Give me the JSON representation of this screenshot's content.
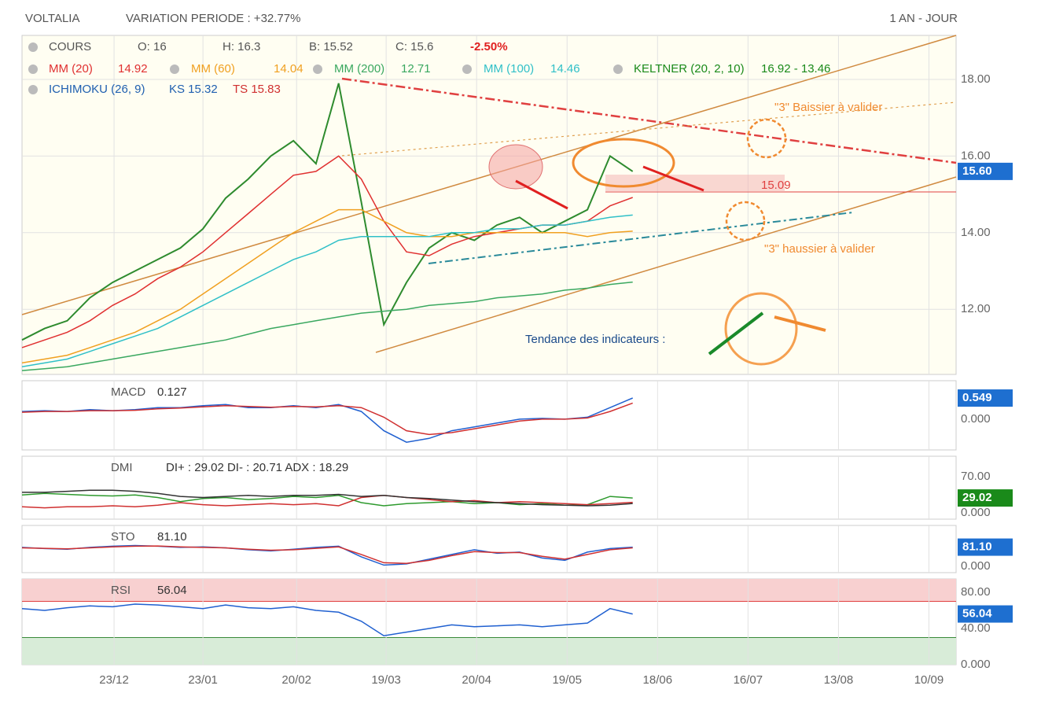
{
  "header": {
    "title": "VOLTALIA",
    "variation": "VARIATION PERIODE : +32.77%",
    "period": "1 AN - JOUR"
  },
  "chart_data": [
    {
      "type": "line",
      "name": "COURS",
      "ohlc": {
        "open": "O: 16",
        "high": "H: 16.3",
        "low": "B: 15.52",
        "close": "C: 15.6",
        "change": "-2.50%"
      },
      "x": [
        0,
        1,
        2,
        3,
        4,
        5,
        6,
        7,
        8,
        9,
        10,
        11,
        12,
        13,
        14,
        15,
        16,
        17,
        18,
        19,
        20,
        21,
        22,
        23,
        24,
        25,
        26,
        27
      ],
      "xlim": [
        0,
        41.3
      ],
      "xticks": [
        {
          "value": 4.07,
          "label": "23/12"
        },
        {
          "value": 8.0,
          "label": "23/01"
        },
        {
          "value": 12.14,
          "label": "20/02"
        },
        {
          "value": 16.1,
          "label": "19/03"
        },
        {
          "value": 20.1,
          "label": "20/04"
        },
        {
          "value": 24.1,
          "label": "19/05"
        },
        {
          "value": 28.1,
          "label": "18/06"
        },
        {
          "value": 32.1,
          "label": "16/07"
        },
        {
          "value": 36.1,
          "label": "13/08"
        },
        {
          "value": 40.1,
          "label": "10/09"
        }
      ],
      "ylim": [
        10.3,
        19.15
      ],
      "yticks": [
        {
          "value": 12,
          "label": "12.00"
        },
        {
          "value": 14,
          "label": "14.00"
        },
        {
          "value": 16,
          "label": "16.00"
        },
        {
          "value": 18,
          "label": "18.00"
        }
      ],
      "grid": true,
      "value_tag": {
        "value": 15.6,
        "label": "15.60",
        "color": "#1e6fd0"
      },
      "series": [
        {
          "name": "COURS",
          "color": "#2e8b2e",
          "values": [
            11.2,
            11.5,
            11.7,
            12.3,
            12.7,
            13.0,
            13.3,
            13.6,
            14.1,
            14.9,
            15.4,
            16.0,
            16.4,
            15.8,
            17.9,
            14.8,
            11.6,
            12.7,
            13.6,
            14.0,
            13.8,
            14.2,
            14.4,
            14.0,
            14.3,
            14.6,
            16.0,
            15.6
          ]
        },
        {
          "name": "MM (20)",
          "value_label": "14.92",
          "color": "#e03030",
          "values": [
            11.0,
            11.2,
            11.4,
            11.7,
            12.1,
            12.4,
            12.8,
            13.1,
            13.5,
            14.0,
            14.5,
            15.0,
            15.5,
            15.6,
            16.0,
            15.4,
            14.3,
            13.5,
            13.4,
            13.7,
            13.9,
            14.0,
            14.1,
            14.2,
            14.2,
            14.3,
            14.7,
            14.92
          ]
        },
        {
          "name": "MM (60)",
          "value_label": "14.04",
          "color": "#f0a020",
          "values": [
            10.6,
            10.7,
            10.8,
            11.0,
            11.2,
            11.4,
            11.7,
            12.0,
            12.4,
            12.8,
            13.2,
            13.6,
            14.0,
            14.3,
            14.6,
            14.6,
            14.3,
            14.0,
            13.9,
            13.9,
            14.0,
            14.0,
            14.0,
            14.0,
            14.0,
            13.9,
            14.0,
            14.04
          ]
        },
        {
          "name": "MM (200)",
          "value_label": "12.71",
          "color": "#3aa860",
          "values": [
            10.4,
            10.45,
            10.5,
            10.6,
            10.7,
            10.8,
            10.9,
            11.0,
            11.1,
            11.2,
            11.35,
            11.5,
            11.6,
            11.7,
            11.8,
            11.9,
            11.95,
            12.0,
            12.1,
            12.15,
            12.2,
            12.3,
            12.35,
            12.4,
            12.5,
            12.55,
            12.65,
            12.71
          ]
        },
        {
          "name": "MM (100)",
          "value_label": "14.46",
          "color": "#30c0c8",
          "values": [
            10.5,
            10.6,
            10.7,
            10.9,
            11.1,
            11.3,
            11.5,
            11.8,
            12.1,
            12.4,
            12.7,
            13.0,
            13.3,
            13.5,
            13.8,
            13.9,
            13.9,
            13.9,
            13.9,
            14.0,
            14.0,
            14.1,
            14.1,
            14.2,
            14.2,
            14.3,
            14.4,
            14.46
          ]
        }
      ],
      "indicators": [
        {
          "name": "KELTNER (20, 2, 10)",
          "label": "16.92 - 13.46",
          "color": "#1a8a1a"
        }
      ],
      "ichimoku": {
        "name": "ICHIMOKU (26, 9)",
        "ks": "KS 15.32",
        "ts": "TS 15.83"
      },
      "annotations": [
        "\"3\" Baissier à valider",
        "\"3\" haussier à valider",
        "Tendance des indicateurs :",
        "15.09"
      ]
    },
    {
      "type": "line",
      "name": "MACD",
      "label": "0.127",
      "ylim": [
        -0.8,
        1.0
      ],
      "yticks": [
        {
          "value": 0,
          "label": "0.000"
        }
      ],
      "value_tag": {
        "value": 0.549,
        "label": "0.549",
        "color": "#1e6fd0"
      },
      "series": [
        {
          "color": "#2060d0",
          "values": [
            0.2,
            0.22,
            0.2,
            0.25,
            0.22,
            0.25,
            0.3,
            0.3,
            0.35,
            0.38,
            0.3,
            0.3,
            0.35,
            0.3,
            0.38,
            0.2,
            -0.3,
            -0.6,
            -0.5,
            -0.3,
            -0.2,
            -0.1,
            0.0,
            0.02,
            0.0,
            0.05,
            0.3,
            0.549
          ]
        },
        {
          "color": "#d03030",
          "values": [
            0.18,
            0.2,
            0.2,
            0.22,
            0.22,
            0.23,
            0.27,
            0.29,
            0.32,
            0.35,
            0.33,
            0.31,
            0.33,
            0.32,
            0.35,
            0.3,
            0.05,
            -0.3,
            -0.4,
            -0.35,
            -0.25,
            -0.15,
            -0.05,
            0.0,
            0.0,
            0.03,
            0.2,
            0.42
          ]
        }
      ]
    },
    {
      "type": "line",
      "name": "DMI",
      "label": "DI+ : 29.02 DI- : 20.71 ADX : 18.29",
      "ylim": [
        -12,
        110
      ],
      "yticks": [
        {
          "value": 0,
          "label": "0.000"
        },
        {
          "value": 70,
          "label": "70.00"
        }
      ],
      "value_tag": {
        "value": 29.02,
        "label": "29.02",
        "color": "#1a8a1a"
      },
      "series": [
        {
          "color": "#2e9a2e",
          "values": [
            35,
            38,
            36,
            34,
            33,
            35,
            30,
            22,
            28,
            30,
            26,
            28,
            32,
            30,
            34,
            20,
            14,
            18,
            20,
            22,
            18,
            20,
            16,
            18,
            15,
            16,
            32,
            29.02
          ]
        },
        {
          "color": "#d03030",
          "values": [
            12,
            10,
            12,
            12,
            14,
            12,
            15,
            20,
            16,
            14,
            16,
            18,
            16,
            18,
            14,
            30,
            34,
            30,
            26,
            22,
            24,
            20,
            22,
            20,
            18,
            16,
            18,
            20.71
          ]
        },
        {
          "color": "#333333",
          "values": [
            40,
            40,
            42,
            44,
            44,
            42,
            38,
            32,
            30,
            32,
            34,
            32,
            34,
            34,
            36,
            32,
            34,
            30,
            28,
            25,
            22,
            20,
            18,
            16,
            15,
            14,
            15,
            18.29
          ]
        }
      ]
    },
    {
      "type": "line",
      "name": "STO",
      "label": "81.10",
      "ylim": [
        -27,
        173
      ],
      "yticks": [
        {
          "value": 0,
          "label": "0.000"
        }
      ],
      "value_tag": {
        "value": 81.1,
        "label": "81.10",
        "color": "#1e6fd0"
      },
      "series": [
        {
          "color": "#2060d0",
          "values": [
            80,
            75,
            72,
            80,
            85,
            88,
            85,
            80,
            82,
            78,
            70,
            65,
            72,
            80,
            85,
            40,
            5,
            10,
            30,
            50,
            70,
            55,
            60,
            35,
            25,
            60,
            75,
            81.1
          ]
        },
        {
          "color": "#d03030",
          "values": [
            78,
            76,
            74,
            78,
            82,
            85,
            86,
            82,
            80,
            78,
            72,
            68,
            70,
            76,
            82,
            50,
            15,
            12,
            25,
            45,
            62,
            58,
            58,
            42,
            30,
            50,
            70,
            78
          ]
        }
      ]
    },
    {
      "type": "line",
      "name": "RSI",
      "label": "56.04",
      "ylim": [
        0,
        94.8
      ],
      "yticks": [
        {
          "value": 0,
          "label": "0.000"
        },
        {
          "value": 40,
          "label": "40.00"
        },
        {
          "value": 80,
          "label": "80.00"
        }
      ],
      "overbought": 70,
      "oversold": 30,
      "value_tag": {
        "value": 56.04,
        "label": "56.04",
        "color": "#1e6fd0"
      },
      "series": [
        {
          "color": "#2060d0",
          "values": [
            62,
            60,
            63,
            65,
            64,
            67,
            66,
            64,
            62,
            66,
            63,
            62,
            64,
            60,
            58,
            48,
            32,
            36,
            40,
            44,
            42,
            43,
            44,
            42,
            44,
            46,
            62,
            56.04
          ]
        }
      ]
    }
  ]
}
